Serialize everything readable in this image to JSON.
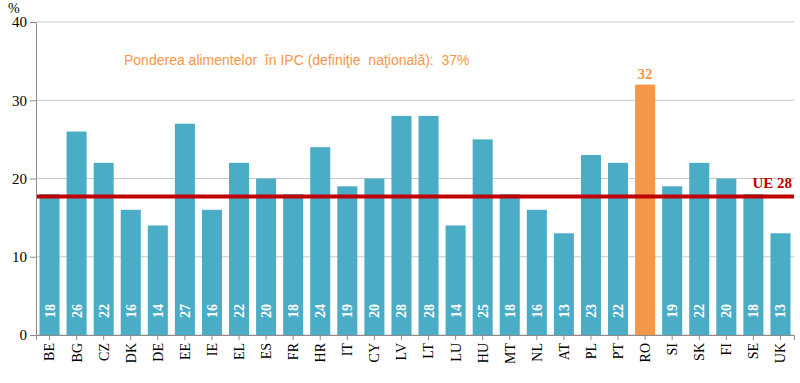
{
  "chart_data": {
    "type": "bar",
    "y_label": "%",
    "annotations": [
      {
        "text": "Ponderea alimentelor  în IPC (definiţie  naţională):  37%"
      }
    ],
    "categories": [
      "BE",
      "BG",
      "CZ",
      "DK",
      "DE",
      "EE",
      "IE",
      "EL",
      "ES",
      "FR",
      "HR",
      "IT",
      "CY",
      "LV",
      "LT",
      "LU",
      "HU",
      "MT",
      "NL",
      "AT",
      "PL",
      "PT",
      "RO",
      "SI",
      "SK",
      "FI",
      "SE",
      "UK"
    ],
    "values": [
      18,
      26,
      22,
      16,
      14,
      27,
      16,
      22,
      20,
      18,
      24,
      19,
      20,
      28,
      28,
      14,
      25,
      18,
      16,
      13,
      23,
      22,
      32,
      19,
      22,
      20,
      18,
      13
    ],
    "colors": [
      "#4bacc6",
      "#4bacc6",
      "#4bacc6",
      "#4bacc6",
      "#4bacc6",
      "#4bacc6",
      "#4bacc6",
      "#4bacc6",
      "#4bacc6",
      "#4bacc6",
      "#4bacc6",
      "#4bacc6",
      "#4bacc6",
      "#4bacc6",
      "#4bacc6",
      "#4bacc6",
      "#4bacc6",
      "#4bacc6",
      "#4bacc6",
      "#4bacc6",
      "#4bacc6",
      "#4bacc6",
      "#f79646",
      "#4bacc6",
      "#4bacc6",
      "#4bacc6",
      "#4bacc6",
      "#4bacc6"
    ],
    "reference": {
      "label": "UE 28",
      "value": 17.7
    },
    "ylim": [
      0,
      40
    ],
    "yticks": [
      0,
      10,
      20,
      30,
      40
    ],
    "grid": true,
    "data_labels": true
  }
}
